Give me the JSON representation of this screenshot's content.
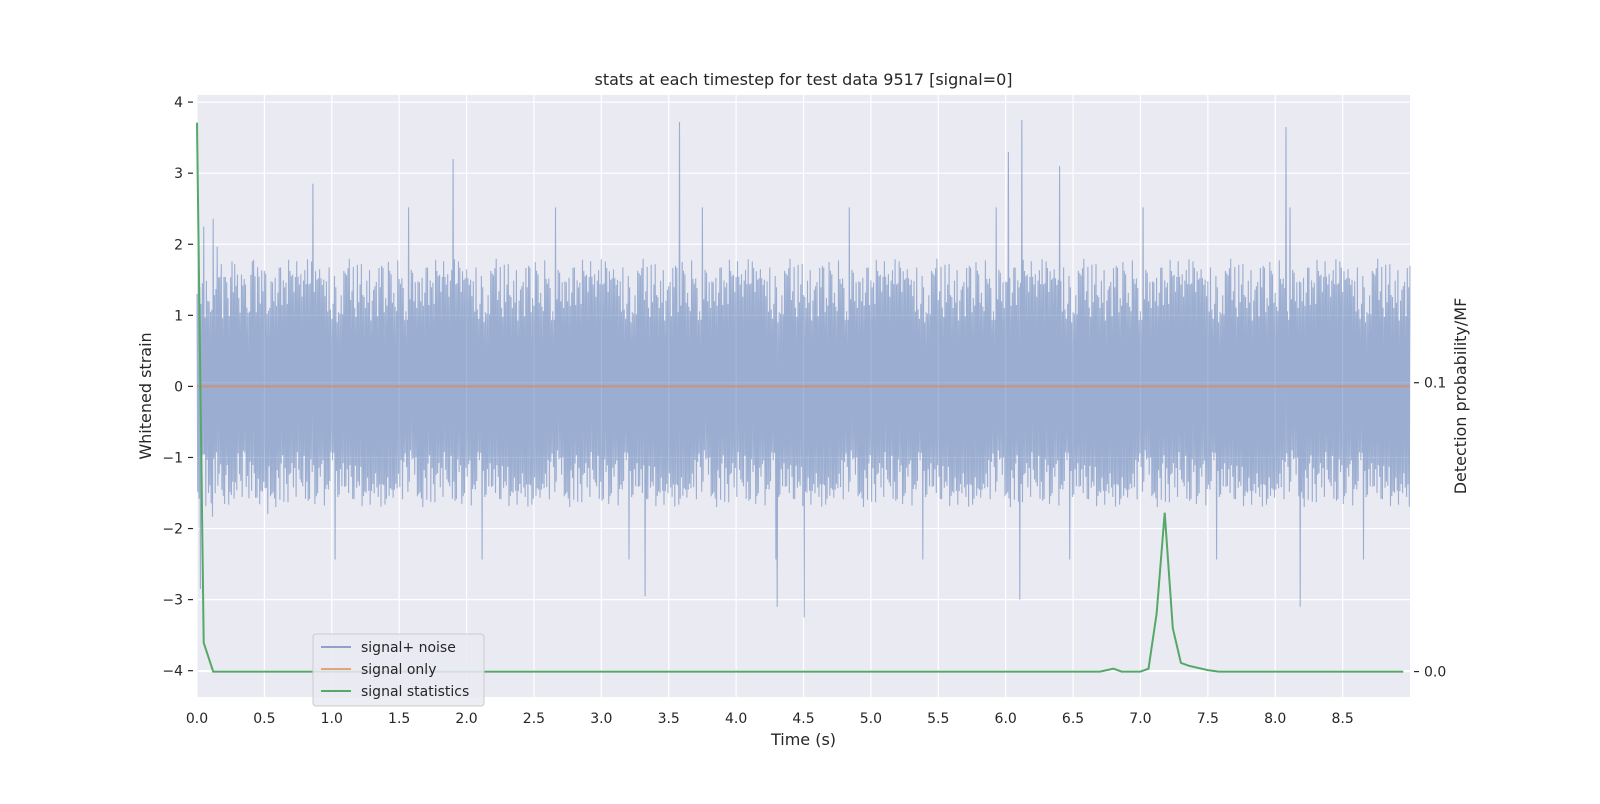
{
  "chart_data": {
    "type": "line",
    "title": "stats at each timestep for test data 9517 [signal=0]",
    "xlabel": "Time (s)",
    "ylabel": "Whitened strain",
    "y2label": "Detection probability/MF",
    "xlim": [
      0,
      9.0
    ],
    "ylim": [
      -4.37,
      4.1
    ],
    "y2lim": [
      -0.0088,
      0.1996
    ],
    "xticks": [
      0.0,
      0.5,
      1.0,
      1.5,
      2.0,
      2.5,
      3.0,
      3.5,
      4.0,
      4.5,
      5.0,
      5.5,
      6.0,
      6.5,
      7.0,
      7.5,
      8.0,
      8.5
    ],
    "xtick_labels": [
      "0.0",
      "0.5",
      "1.0",
      "1.5",
      "2.0",
      "2.5",
      "3.0",
      "3.5",
      "4.0",
      "4.5",
      "5.0",
      "5.5",
      "6.0",
      "6.5",
      "7.0",
      "7.5",
      "8.0",
      "8.5"
    ],
    "yticks": [
      4,
      3,
      2,
      1,
      0,
      -1,
      -2,
      -3,
      -4
    ],
    "ytick_labels": [
      "4",
      "3",
      "2",
      "1",
      "0",
      "−1",
      "−2",
      "−3",
      "−4"
    ],
    "y2ticks": [
      0.1,
      0.0
    ],
    "y2tick_labels": [
      "0.1",
      "0.0"
    ],
    "grid": true,
    "legend_position": "lower-left",
    "series": [
      {
        "name": "signal+ noise",
        "color": "#4c72b0",
        "axis": "left",
        "kind": "dense-noise",
        "noise_envelope": {
          "typical_min": -1.7,
          "typical_max": 1.8,
          "min": -3.25,
          "max": 3.75
        },
        "peaks": [
          {
            "x": 0.01,
            "y": 2.1
          },
          {
            "x": 0.05,
            "y": 2.25
          },
          {
            "x": 0.86,
            "y": 2.85
          },
          {
            "x": 1.9,
            "y": 3.2
          },
          {
            "x": 3.58,
            "y": 3.72
          },
          {
            "x": 6.02,
            "y": 3.3
          },
          {
            "x": 6.12,
            "y": 3.75
          },
          {
            "x": 6.4,
            "y": 3.1
          },
          {
            "x": 8.08,
            "y": 3.65
          },
          {
            "x": 0.02,
            "y": -2.85
          },
          {
            "x": 3.32,
            "y": -2.95
          },
          {
            "x": 4.3,
            "y": -3.1
          },
          {
            "x": 4.5,
            "y": -3.25
          },
          {
            "x": 6.1,
            "y": -3.0
          },
          {
            "x": 8.18,
            "y": -3.1
          }
        ]
      },
      {
        "name": "signal only",
        "color": "#dd8452",
        "axis": "left",
        "x": [
          0.0,
          9.0
        ],
        "y": [
          0.0,
          0.0
        ]
      },
      {
        "name": "signal statistics",
        "color": "#55a868",
        "axis": "right",
        "x": [
          0.0,
          0.05,
          0.12,
          0.2,
          1.0,
          2.0,
          3.0,
          4.0,
          5.0,
          6.0,
          6.7,
          6.8,
          6.86,
          7.0,
          7.06,
          7.12,
          7.18,
          7.24,
          7.3,
          7.36,
          7.5,
          7.58,
          8.0,
          8.5,
          8.95
        ],
        "y": [
          0.19,
          0.01,
          0.0,
          0.0,
          0.0,
          0.0,
          0.0,
          0.0,
          0.0,
          0.0,
          0.0,
          0.001,
          0.0,
          0.0,
          0.001,
          0.02,
          0.055,
          0.015,
          0.003,
          0.002,
          0.0005,
          0.0,
          0.0,
          0.0,
          0.0
        ]
      }
    ]
  }
}
